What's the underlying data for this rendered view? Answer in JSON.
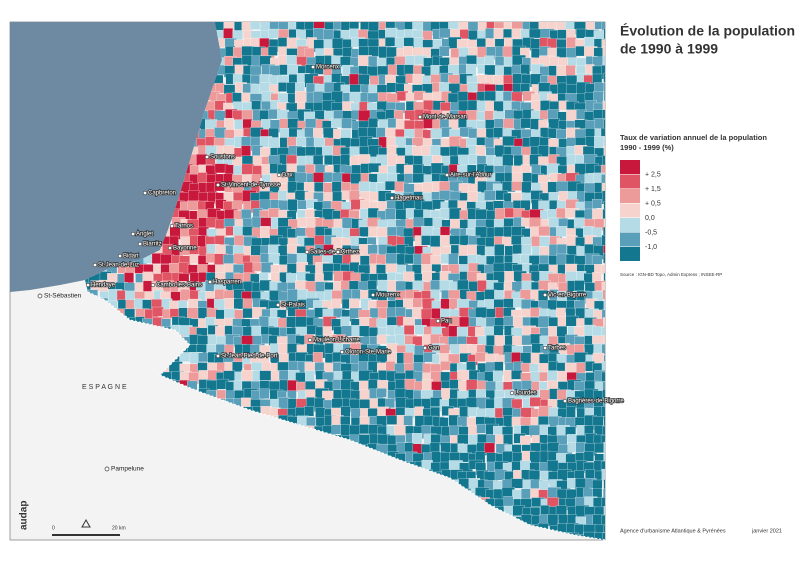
{
  "title": [
    "Évolution de la population",
    "de 1990 à 1999"
  ],
  "legend": {
    "title": [
      "Taux de variation annuel de la population",
      "1990 - 1999 (%)"
    ],
    "colors": [
      "#c8193c",
      "#e05564",
      "#ec9a9a",
      "#f6d3cd",
      "#b5dce6",
      "#5a9fba",
      "#137790"
    ],
    "breaks": [
      "+ 2,5",
      "+ 1,5",
      "+ 0,5",
      "0,0",
      "-0,5",
      "-1,0"
    ]
  },
  "source": "Source : IGN-BD Topo, Admin Express ; INSEE-RP",
  "footer": {
    "agency": "Agence d'urbanisme Atlantique & Pyrénées",
    "date": "janvier 2021",
    "logo": "audap"
  },
  "scale": {
    "start": "0",
    "end": "20 km"
  },
  "country_label": "E S P A G N E",
  "cities": [
    "Morcenx",
    "Mont-de-Marsan",
    "Soustons",
    "Capbreton",
    "St-Vincent-de-Tyrosse",
    "Dax",
    "Aire-sur-l'Adour",
    "Hagetmau",
    "Tarnos",
    "Anglet",
    "Biarritz",
    "Bayonne",
    "Bidart",
    "St-Jean-de-Luz",
    "Hendaye",
    "Cambo-les-Bains",
    "Hasparren",
    "Salies-de-Béarn",
    "Orthez",
    "St-Palais",
    "Mourenx",
    "Vic-en-Bigorre",
    "Pau",
    "Mauléon-Licharre",
    "Oloron-Ste-Marie",
    "Gan",
    "Tarbes",
    "St-Jean-Pied-de-Port",
    "Lourdes",
    "Bagnères-de-Bigorre"
  ],
  "foreign_cities": [
    "St-Sébastien",
    "Pampelune"
  ]
}
